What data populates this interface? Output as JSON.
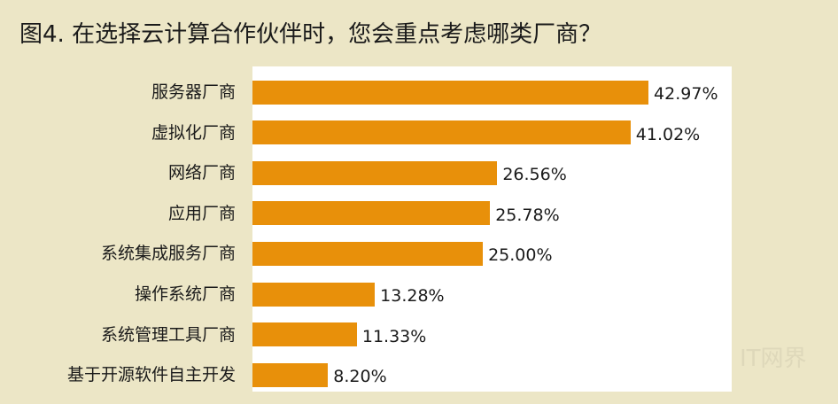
{
  "chart_data": {
    "type": "bar",
    "orientation": "horizontal",
    "title": "图4. 在选择云计算合作伙伴时，您会重点考虑哪类厂商？",
    "categories": [
      "服务器厂商",
      "虚拟化厂商",
      "网络厂商",
      "应用厂商",
      "系统集成服务厂商",
      "操作系统厂商",
      "系统管理工具厂商",
      "基于开源软件自主开发"
    ],
    "values": [
      42.97,
      41.02,
      26.56,
      25.78,
      25.0,
      13.28,
      11.33,
      8.2
    ],
    "value_labels": [
      "42.97%",
      "41.02%",
      "26.56%",
      "25.78%",
      "25.00%",
      "13.28%",
      "11.33%",
      "8.20%"
    ],
    "unit": "%",
    "xlim": [
      0,
      52
    ],
    "grid": false,
    "legend": "none",
    "bar_color": "#e8900a",
    "plot_background": "#ffffff",
    "page_background": "#ece6c6"
  },
  "watermark": "IT网界"
}
